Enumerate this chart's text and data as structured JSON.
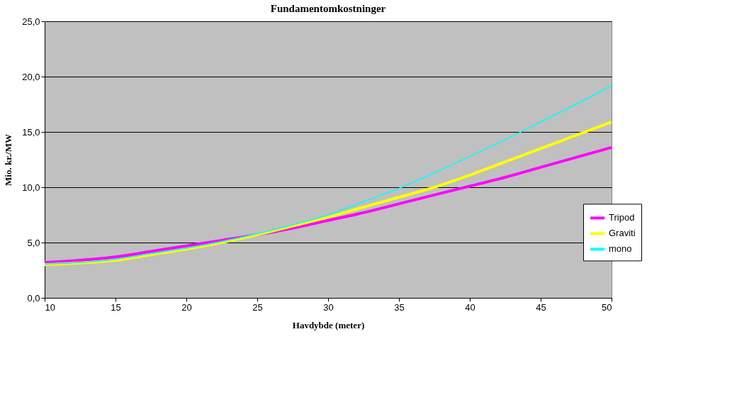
{
  "chart_data": {
    "type": "line",
    "title": "Fundamentomkostninger",
    "xlabel": "Havdybde (meter)",
    "ylabel": "Mio. kr./MW",
    "x": [
      10,
      12.5,
      15,
      17.5,
      20,
      22.5,
      25,
      27.5,
      30,
      32.5,
      35,
      37.5,
      40,
      42.5,
      45,
      47.5,
      50
    ],
    "series": [
      {
        "name": "Tripod",
        "color": "#ff00ff",
        "values": [
          3.2,
          3.4,
          3.7,
          4.2,
          4.7,
          5.2,
          5.7,
          6.3,
          7.0,
          7.7,
          8.5,
          9.3,
          10.1,
          10.9,
          11.8,
          12.7,
          13.6
        ]
      },
      {
        "name": "Graviti",
        "color": "#ffff00",
        "values": [
          3.0,
          3.15,
          3.4,
          3.9,
          4.4,
          5.0,
          5.7,
          6.5,
          7.3,
          8.2,
          9.1,
          10.0,
          11.1,
          12.3,
          13.5,
          14.7,
          15.9
        ]
      },
      {
        "name": "mono",
        "color": "#00ffff",
        "values": [
          3.05,
          3.2,
          3.5,
          4.0,
          4.5,
          5.1,
          5.8,
          6.6,
          7.5,
          8.7,
          9.9,
          11.3,
          12.8,
          14.3,
          15.9,
          17.5,
          19.2
        ]
      }
    ],
    "xlim": [
      10,
      50
    ],
    "xticks": [
      10,
      15,
      20,
      25,
      30,
      35,
      40,
      45,
      50
    ],
    "ylim": [
      0,
      25
    ],
    "yticks": [
      {
        "value": 0,
        "label": "0,0"
      },
      {
        "value": 5,
        "label": "5,0"
      },
      {
        "value": 10,
        "label": "10,0"
      },
      {
        "value": 15,
        "label": "15,0"
      },
      {
        "value": 20,
        "label": "20,0"
      },
      {
        "value": 25,
        "label": "25,0"
      }
    ],
    "grid": "y",
    "legend": "right",
    "marker": "none",
    "line_style": "solid"
  }
}
